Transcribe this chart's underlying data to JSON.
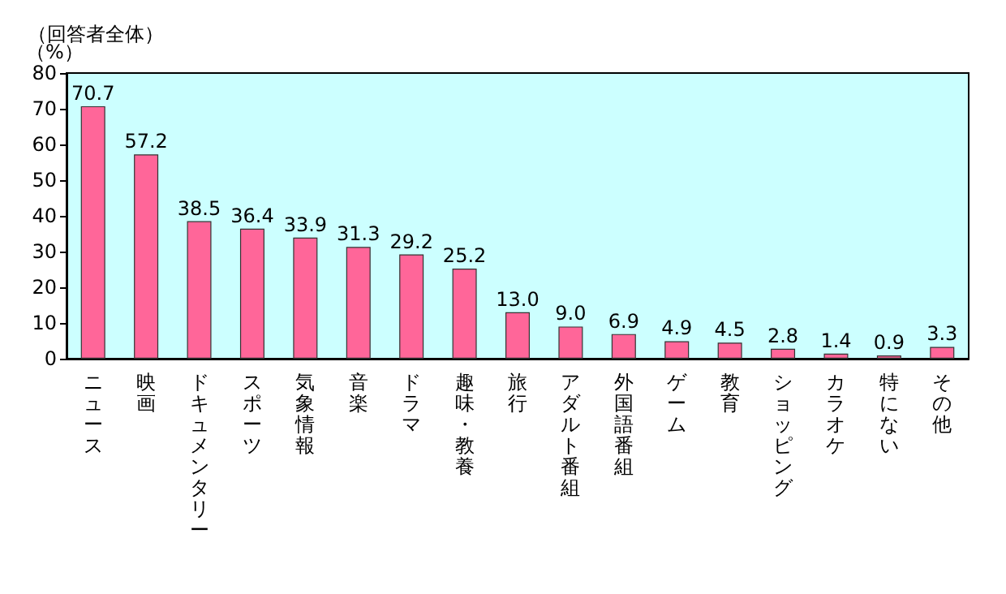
{
  "chart_data": {
    "type": "bar",
    "title": "（回答者全体）",
    "ylabel": "（%）",
    "categories": [
      "ニュース",
      "映画",
      "ドキュメンタリー",
      "スポーツ",
      "気象情報",
      "音楽",
      "ドラマ",
      "趣味・教養",
      "旅行",
      "アダルト番組",
      "外国語番組",
      "ゲーム",
      "教育",
      "ショッピング",
      "カラオケ",
      "特にない",
      "その他"
    ],
    "values": [
      70.7,
      57.2,
      38.5,
      36.4,
      33.9,
      31.3,
      29.2,
      25.2,
      13.0,
      9.0,
      6.9,
      4.9,
      4.5,
      2.8,
      1.4,
      0.9,
      3.3
    ],
    "value_labels": [
      "70.7",
      "57.2",
      "38.5",
      "36.4",
      "33.9",
      "31.3",
      "29.2",
      "25.2",
      "13.0",
      "9.0",
      "6.9",
      "4.9",
      "4.5",
      "2.8",
      "1.4",
      "0.9",
      "3.3"
    ],
    "color": "#ff6699",
    "ylim": [
      0,
      80
    ],
    "yticks": [
      0,
      10,
      20,
      30,
      40,
      50,
      60,
      70,
      80
    ],
    "grid": false
  }
}
